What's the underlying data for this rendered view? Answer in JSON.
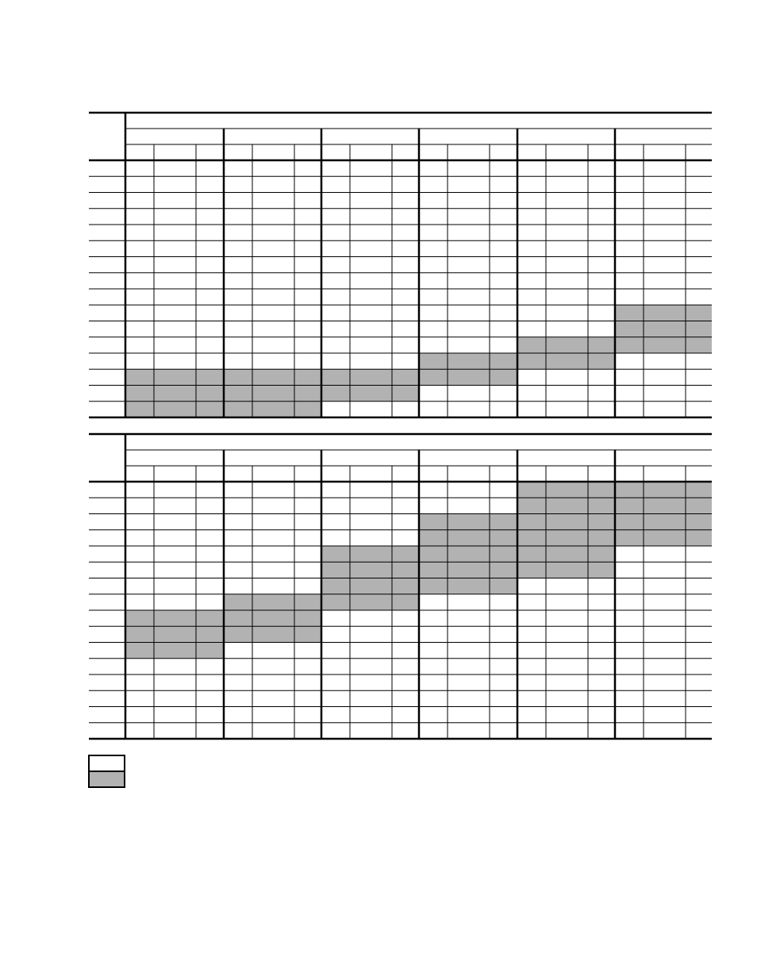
{
  "colors": {
    "shaded": "#b2b2b2",
    "unshaded": "#ffffff",
    "lines": "#000000"
  },
  "tables": [
    {
      "name": "upper-table",
      "group_count": 6,
      "subcolumns_per_group": 3,
      "row_count": 16,
      "shaded_groups_by_row": [
        [],
        [],
        [],
        [],
        [],
        [],
        [],
        [],
        [],
        [
          6
        ],
        [
          6
        ],
        [
          5,
          6
        ],
        [
          4,
          5
        ],
        [
          1,
          2,
          3,
          4
        ],
        [
          1,
          2,
          3
        ],
        [
          1,
          2
        ]
      ]
    },
    {
      "name": "lower-table",
      "group_count": 6,
      "subcolumns_per_group": 3,
      "row_count": 16,
      "shaded_groups_by_row": [
        [
          5,
          6
        ],
        [
          5,
          6
        ],
        [
          4,
          5,
          6
        ],
        [
          4,
          5,
          6
        ],
        [
          3,
          4,
          5
        ],
        [
          3,
          4,
          5
        ],
        [
          3,
          4
        ],
        [
          2,
          3
        ],
        [
          1,
          2
        ],
        [
          1,
          2
        ],
        [
          1
        ],
        [],
        [],
        [],
        [],
        []
      ]
    }
  ],
  "legend": {
    "items": [
      {
        "key": "unshaded",
        "color": "#ffffff"
      },
      {
        "key": "shaded",
        "color": "#b2b2b2"
      }
    ]
  }
}
